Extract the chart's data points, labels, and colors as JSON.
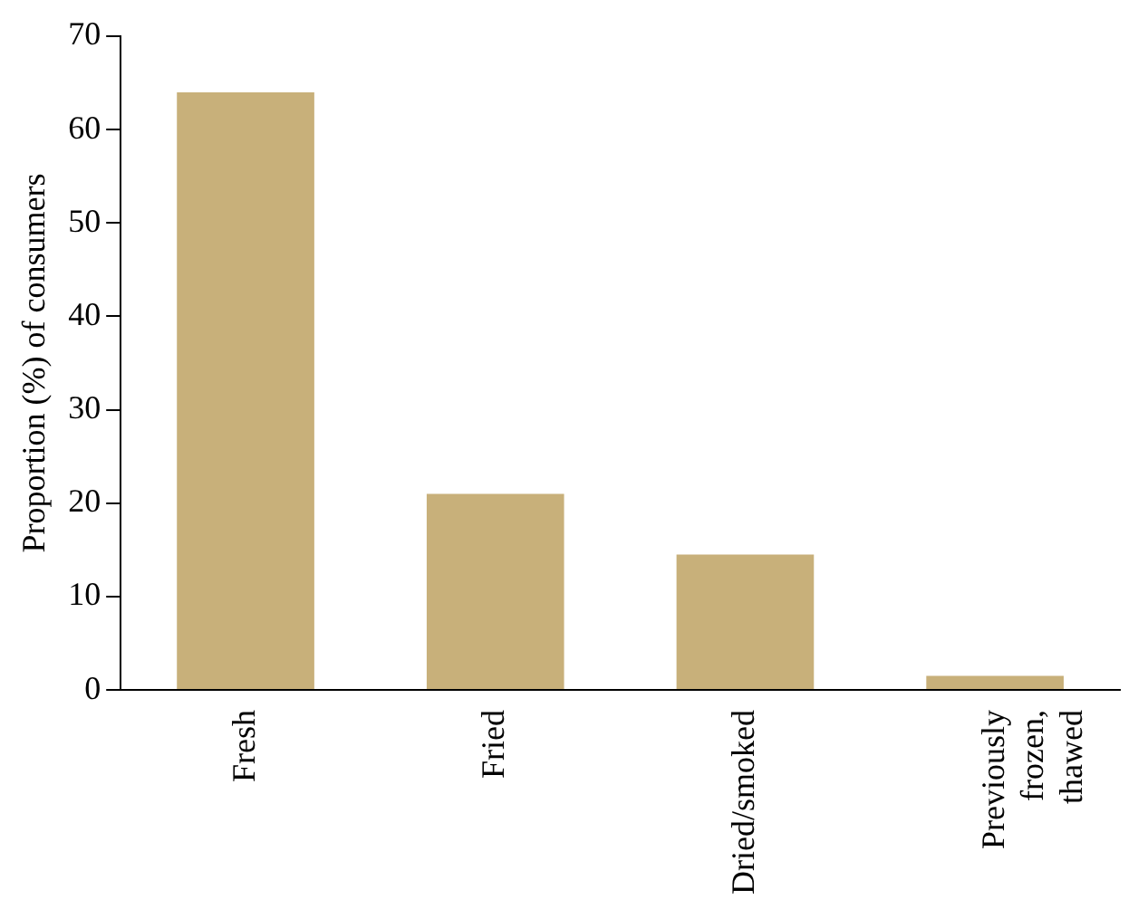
{
  "chart_data": {
    "type": "bar",
    "ylabel": "Proportion (%) of consumers",
    "categories": [
      "Fresh",
      "Fried",
      "Dried/smoked",
      "Previously frozen, thawed"
    ],
    "values": [
      64,
      21,
      14.5,
      1.5
    ],
    "color": "#c8b07a",
    "ylim": [
      0,
      70
    ],
    "yticks": [
      0,
      10,
      20,
      30,
      40,
      50,
      60,
      70
    ],
    "grid": false,
    "legend": false
  }
}
